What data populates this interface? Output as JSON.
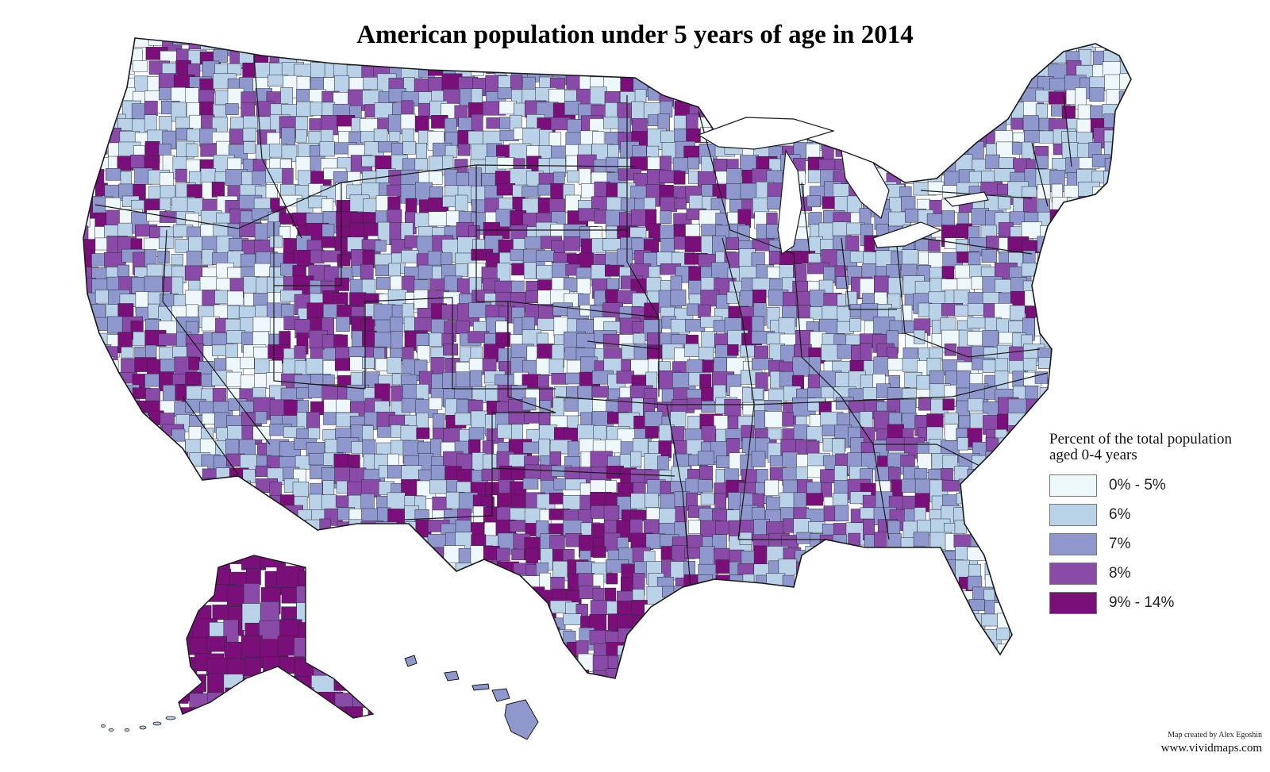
{
  "title": "American population under 5 years of age in 2014",
  "colors": {
    "c0": "#eef7f9",
    "c1": "#b9d2e7",
    "c2": "#8e98cc",
    "c3": "#8a4aa7",
    "c4": "#7a0f7a",
    "border": "#1a1a1a"
  },
  "legend": {
    "title_line1": "Percent of the total population",
    "title_line2": "aged 0-4 years",
    "items": [
      {
        "label": "0% - 5%",
        "color": "#eef7f9"
      },
      {
        "label": "6%",
        "color": "#b9d2e7"
      },
      {
        "label": "7%",
        "color": "#8e98cc"
      },
      {
        "label": "8%",
        "color": "#8a4aa7"
      },
      {
        "label": "9% - 14%",
        "color": "#7a0f7a"
      }
    ]
  },
  "credit": "Map created by Alex Egoshin",
  "site": "www.vividmaps.com"
}
